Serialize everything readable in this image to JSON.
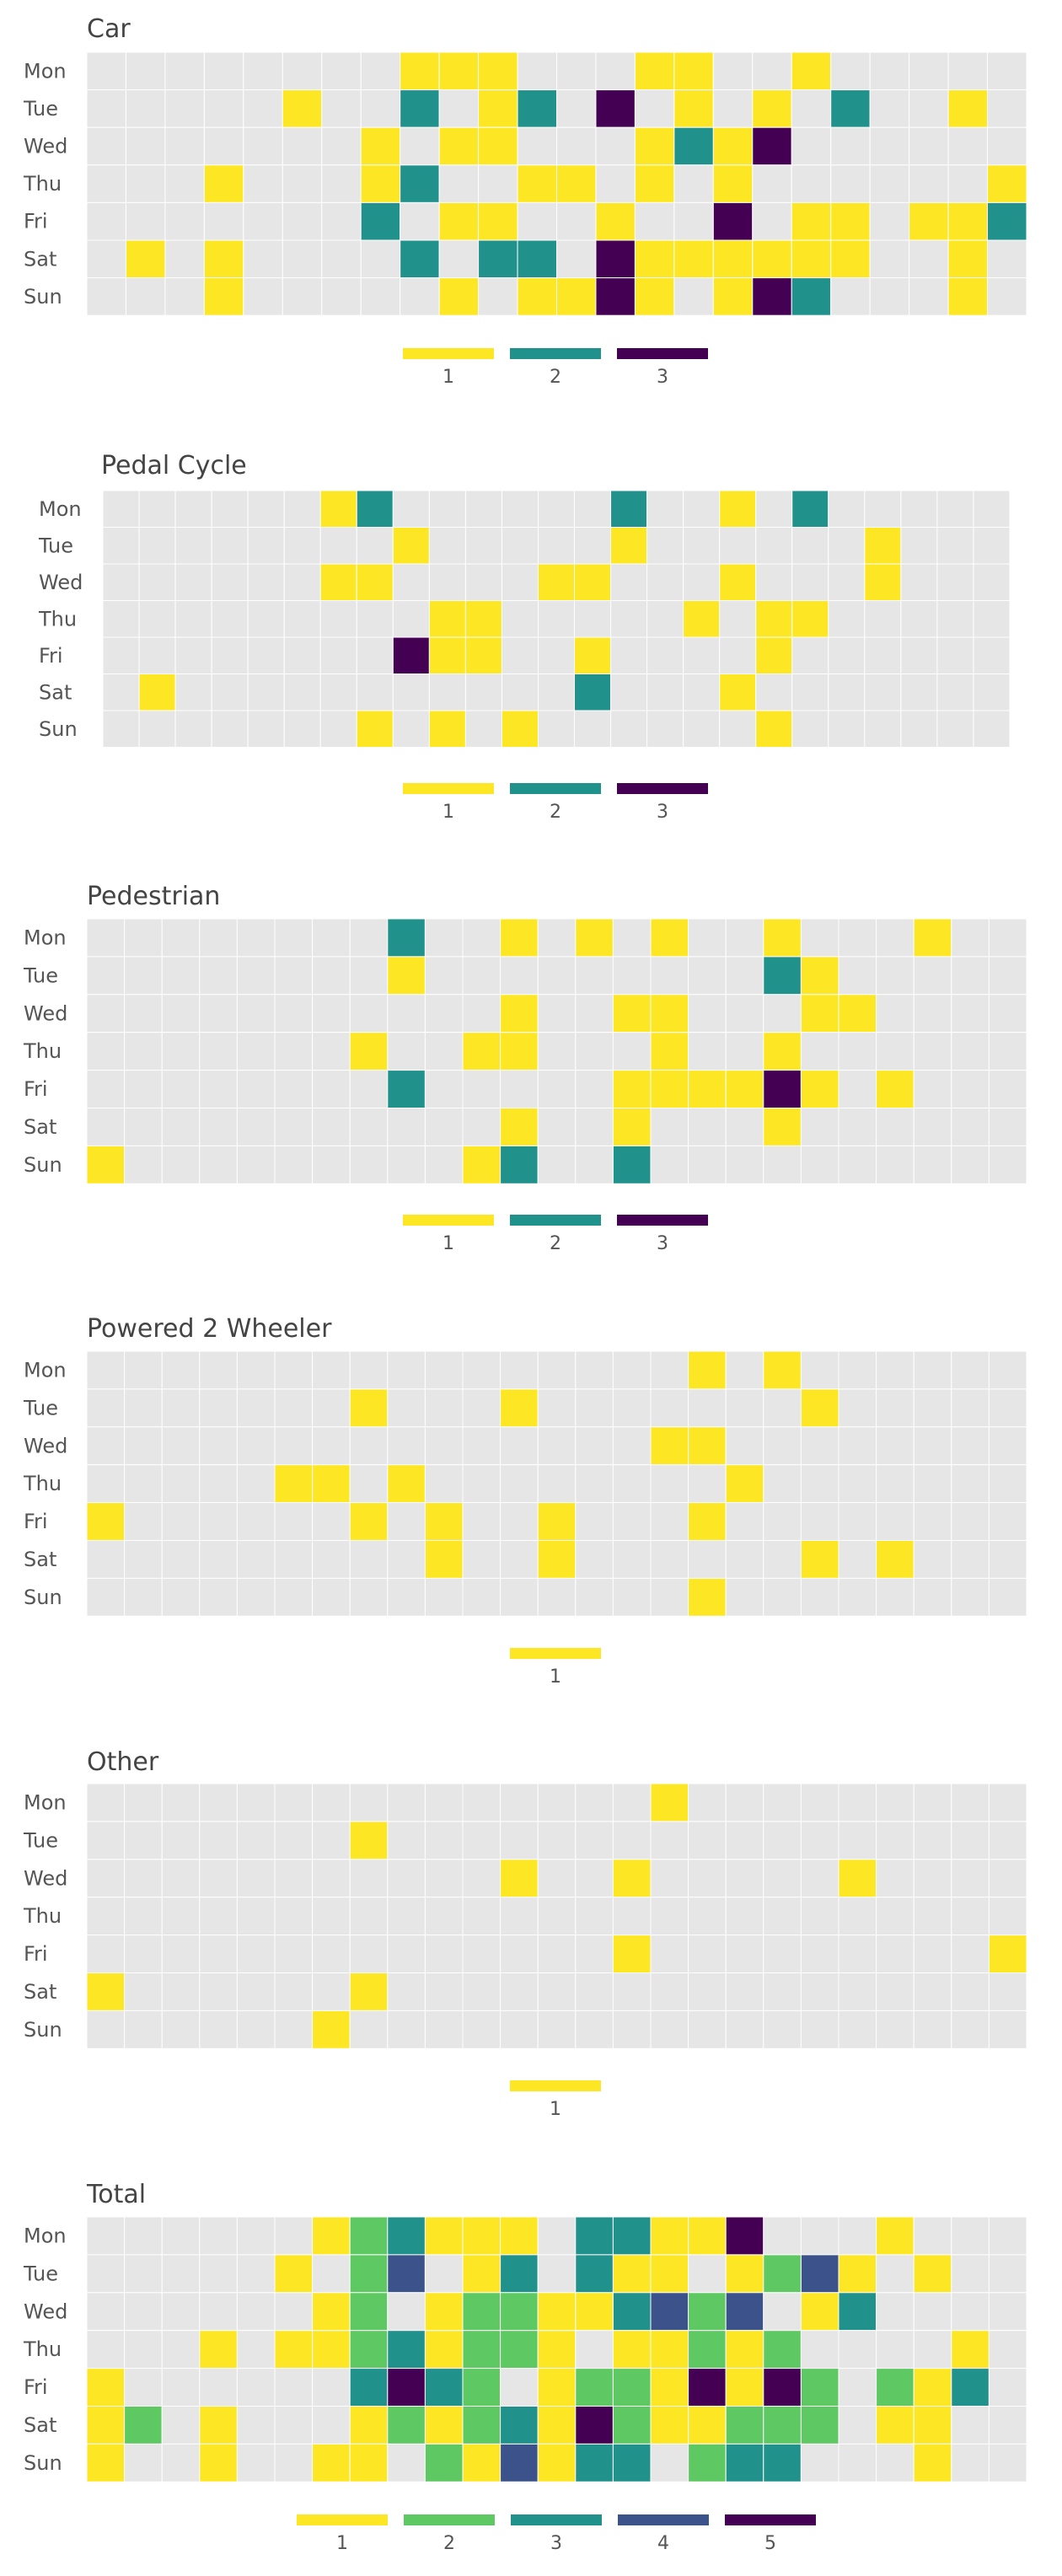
{
  "palette": {
    "background": "#e6e6e6",
    "1": "#fde725",
    "2": "#5ec962",
    "3": "#21918c",
    "4": "#3b528b",
    "5": "#440154"
  },
  "chart_data": [
    {
      "type": "heatmap",
      "title": "Car",
      "days": [
        "Mon",
        "Tue",
        "Wed",
        "Thu",
        "Fri",
        "Sat",
        "Sun"
      ],
      "hours": 24,
      "legend": [
        {
          "value": 1,
          "label": "1",
          "color": "#fde725"
        },
        {
          "value": 2,
          "label": "2",
          "color": "#21918c"
        },
        {
          "value": 3,
          "label": "3",
          "color": "#440154"
        }
      ],
      "grid": [
        [
          0,
          0,
          0,
          0,
          0,
          0,
          0,
          0,
          1,
          1,
          1,
          0,
          0,
          0,
          1,
          1,
          0,
          0,
          1,
          0,
          0,
          0,
          0,
          0
        ],
        [
          0,
          0,
          0,
          0,
          0,
          1,
          0,
          0,
          2,
          0,
          1,
          2,
          0,
          3,
          0,
          1,
          0,
          1,
          0,
          2,
          0,
          0,
          1,
          0
        ],
        [
          0,
          0,
          0,
          0,
          0,
          0,
          0,
          1,
          0,
          1,
          1,
          0,
          0,
          0,
          1,
          2,
          1,
          3,
          0,
          0,
          0,
          0,
          0,
          0
        ],
        [
          0,
          0,
          0,
          1,
          0,
          0,
          0,
          1,
          2,
          0,
          0,
          1,
          1,
          0,
          1,
          0,
          1,
          0,
          0,
          0,
          0,
          0,
          0,
          1
        ],
        [
          0,
          0,
          0,
          0,
          0,
          0,
          0,
          2,
          0,
          1,
          1,
          0,
          0,
          1,
          0,
          0,
          3,
          0,
          1,
          1,
          0,
          1,
          1,
          2
        ],
        [
          0,
          1,
          0,
          1,
          0,
          0,
          0,
          0,
          2,
          0,
          2,
          2,
          0,
          3,
          1,
          1,
          1,
          1,
          1,
          1,
          0,
          0,
          1,
          0
        ],
        [
          0,
          0,
          0,
          1,
          0,
          0,
          0,
          0,
          0,
          1,
          0,
          1,
          1,
          3,
          1,
          0,
          1,
          3,
          2,
          0,
          0,
          0,
          1,
          0
        ]
      ]
    },
    {
      "type": "heatmap",
      "title": "Pedal Cycle",
      "days": [
        "Mon",
        "Tue",
        "Wed",
        "Thu",
        "Fri",
        "Sat",
        "Sun"
      ],
      "hours": 25,
      "legend": [
        {
          "value": 1,
          "label": "1",
          "color": "#fde725"
        },
        {
          "value": 2,
          "label": "2",
          "color": "#21918c"
        },
        {
          "value": 3,
          "label": "3",
          "color": "#440154"
        }
      ],
      "grid": [
        [
          0,
          0,
          0,
          0,
          0,
          0,
          1,
          2,
          0,
          0,
          0,
          0,
          0,
          0,
          2,
          0,
          0,
          1,
          0,
          2,
          0,
          0,
          0,
          0,
          0
        ],
        [
          0,
          0,
          0,
          0,
          0,
          0,
          0,
          0,
          1,
          0,
          0,
          0,
          0,
          0,
          1,
          0,
          0,
          0,
          0,
          0,
          0,
          1,
          0,
          0,
          0
        ],
        [
          0,
          0,
          0,
          0,
          0,
          0,
          1,
          1,
          0,
          0,
          0,
          0,
          1,
          1,
          0,
          0,
          0,
          1,
          0,
          0,
          0,
          1,
          0,
          0,
          0
        ],
        [
          0,
          0,
          0,
          0,
          0,
          0,
          0,
          0,
          0,
          1,
          1,
          0,
          0,
          0,
          0,
          0,
          1,
          0,
          1,
          1,
          0,
          0,
          0,
          0,
          0
        ],
        [
          0,
          0,
          0,
          0,
          0,
          0,
          0,
          0,
          3,
          1,
          1,
          0,
          0,
          1,
          0,
          0,
          0,
          0,
          1,
          0,
          0,
          0,
          0,
          0,
          0
        ],
        [
          0,
          1,
          0,
          0,
          0,
          0,
          0,
          0,
          0,
          0,
          0,
          0,
          0,
          2,
          0,
          0,
          0,
          1,
          0,
          0,
          0,
          0,
          0,
          0,
          0
        ],
        [
          0,
          0,
          0,
          0,
          0,
          0,
          0,
          1,
          0,
          1,
          0,
          1,
          0,
          0,
          0,
          0,
          0,
          0,
          1,
          0,
          0,
          0,
          0,
          0,
          0
        ]
      ]
    },
    {
      "type": "heatmap",
      "title": "Pedestrian",
      "days": [
        "Mon",
        "Tue",
        "Wed",
        "Thu",
        "Fri",
        "Sat",
        "Sun"
      ],
      "hours": 25,
      "legend": [
        {
          "value": 1,
          "label": "1",
          "color": "#fde725"
        },
        {
          "value": 2,
          "label": "2",
          "color": "#21918c"
        },
        {
          "value": 3,
          "label": "3",
          "color": "#440154"
        }
      ],
      "grid": [
        [
          0,
          0,
          0,
          0,
          0,
          0,
          0,
          0,
          2,
          0,
          0,
          1,
          0,
          1,
          0,
          1,
          0,
          0,
          1,
          0,
          0,
          0,
          1,
          0,
          0
        ],
        [
          0,
          0,
          0,
          0,
          0,
          0,
          0,
          0,
          1,
          0,
          0,
          0,
          0,
          0,
          0,
          0,
          0,
          0,
          2,
          1,
          0,
          0,
          0,
          0,
          0
        ],
        [
          0,
          0,
          0,
          0,
          0,
          0,
          0,
          0,
          0,
          0,
          0,
          1,
          0,
          0,
          1,
          1,
          0,
          0,
          0,
          1,
          1,
          0,
          0,
          0,
          0
        ],
        [
          0,
          0,
          0,
          0,
          0,
          0,
          0,
          1,
          0,
          0,
          1,
          1,
          0,
          0,
          0,
          1,
          0,
          0,
          1,
          0,
          0,
          0,
          0,
          0,
          0
        ],
        [
          0,
          0,
          0,
          0,
          0,
          0,
          0,
          0,
          2,
          0,
          0,
          0,
          0,
          0,
          1,
          1,
          1,
          1,
          3,
          1,
          0,
          1,
          0,
          0,
          0
        ],
        [
          0,
          0,
          0,
          0,
          0,
          0,
          0,
          0,
          0,
          0,
          0,
          1,
          0,
          0,
          1,
          0,
          0,
          0,
          1,
          0,
          0,
          0,
          0,
          0,
          0
        ],
        [
          1,
          0,
          0,
          0,
          0,
          0,
          0,
          0,
          0,
          0,
          1,
          2,
          0,
          0,
          2,
          0,
          0,
          0,
          0,
          0,
          0,
          0,
          0,
          0,
          0
        ]
      ]
    },
    {
      "type": "heatmap",
      "title": "Powered 2 Wheeler",
      "days": [
        "Mon",
        "Tue",
        "Wed",
        "Thu",
        "Fri",
        "Sat",
        "Sun"
      ],
      "hours": 25,
      "legend": [
        {
          "value": 1,
          "label": "1",
          "color": "#fde725"
        }
      ],
      "grid": [
        [
          0,
          0,
          0,
          0,
          0,
          0,
          0,
          0,
          0,
          0,
          0,
          0,
          0,
          0,
          0,
          0,
          1,
          0,
          1,
          0,
          0,
          0,
          0,
          0,
          0
        ],
        [
          0,
          0,
          0,
          0,
          0,
          0,
          0,
          1,
          0,
          0,
          0,
          1,
          0,
          0,
          0,
          0,
          0,
          0,
          0,
          1,
          0,
          0,
          0,
          0,
          0
        ],
        [
          0,
          0,
          0,
          0,
          0,
          0,
          0,
          0,
          0,
          0,
          0,
          0,
          0,
          0,
          0,
          1,
          1,
          0,
          0,
          0,
          0,
          0,
          0,
          0,
          0
        ],
        [
          0,
          0,
          0,
          0,
          0,
          1,
          1,
          0,
          1,
          0,
          0,
          0,
          0,
          0,
          0,
          0,
          0,
          1,
          0,
          0,
          0,
          0,
          0,
          0,
          0
        ],
        [
          1,
          0,
          0,
          0,
          0,
          0,
          0,
          1,
          0,
          1,
          0,
          0,
          1,
          0,
          0,
          0,
          1,
          0,
          0,
          0,
          0,
          0,
          0,
          0,
          0
        ],
        [
          0,
          0,
          0,
          0,
          0,
          0,
          0,
          0,
          0,
          1,
          0,
          0,
          1,
          0,
          0,
          0,
          0,
          0,
          0,
          1,
          0,
          1,
          0,
          0,
          0
        ],
        [
          0,
          0,
          0,
          0,
          0,
          0,
          0,
          0,
          0,
          0,
          0,
          0,
          0,
          0,
          0,
          0,
          1,
          0,
          0,
          0,
          0,
          0,
          0,
          0,
          0
        ]
      ]
    },
    {
      "type": "heatmap",
      "title": "Other",
      "days": [
        "Mon",
        "Tue",
        "Wed",
        "Thu",
        "Fri",
        "Sat",
        "Sun"
      ],
      "hours": 25,
      "legend": [
        {
          "value": 1,
          "label": "1",
          "color": "#fde725"
        }
      ],
      "grid": [
        [
          0,
          0,
          0,
          0,
          0,
          0,
          0,
          0,
          0,
          0,
          0,
          0,
          0,
          0,
          0,
          1,
          0,
          0,
          0,
          0,
          0,
          0,
          0,
          0,
          0
        ],
        [
          0,
          0,
          0,
          0,
          0,
          0,
          0,
          1,
          0,
          0,
          0,
          0,
          0,
          0,
          0,
          0,
          0,
          0,
          0,
          0,
          0,
          0,
          0,
          0,
          0
        ],
        [
          0,
          0,
          0,
          0,
          0,
          0,
          0,
          0,
          0,
          0,
          0,
          1,
          0,
          0,
          1,
          0,
          0,
          0,
          0,
          0,
          1,
          0,
          0,
          0,
          0
        ],
        [
          0,
          0,
          0,
          0,
          0,
          0,
          0,
          0,
          0,
          0,
          0,
          0,
          0,
          0,
          0,
          0,
          0,
          0,
          0,
          0,
          0,
          0,
          0,
          0,
          0
        ],
        [
          0,
          0,
          0,
          0,
          0,
          0,
          0,
          0,
          0,
          0,
          0,
          0,
          0,
          0,
          1,
          0,
          0,
          0,
          0,
          0,
          0,
          0,
          0,
          0,
          1
        ],
        [
          1,
          0,
          0,
          0,
          0,
          0,
          0,
          1,
          0,
          0,
          0,
          0,
          0,
          0,
          0,
          0,
          0,
          0,
          0,
          0,
          0,
          0,
          0,
          0,
          0
        ],
        [
          0,
          0,
          0,
          0,
          0,
          0,
          1,
          0,
          0,
          0,
          0,
          0,
          0,
          0,
          0,
          0,
          0,
          0,
          0,
          0,
          0,
          0,
          0,
          0,
          0
        ]
      ]
    },
    {
      "type": "heatmap",
      "title": "Total",
      "days": [
        "Mon",
        "Tue",
        "Wed",
        "Thu",
        "Fri",
        "Sat",
        "Sun"
      ],
      "hours": 25,
      "legend": [
        {
          "value": 1,
          "label": "1",
          "color": "#fde725"
        },
        {
          "value": 2,
          "label": "2",
          "color": "#5ec962"
        },
        {
          "value": 3,
          "label": "3",
          "color": "#21918c"
        },
        {
          "value": 4,
          "label": "4",
          "color": "#3b528b"
        },
        {
          "value": 5,
          "label": "5",
          "color": "#440154"
        }
      ],
      "grid": [
        [
          0,
          0,
          0,
          0,
          0,
          0,
          1,
          2,
          3,
          1,
          1,
          1,
          0,
          3,
          3,
          1,
          1,
          5,
          0,
          0,
          0,
          1,
          0,
          0,
          0
        ],
        [
          0,
          0,
          0,
          0,
          0,
          1,
          0,
          2,
          4,
          0,
          1,
          3,
          0,
          3,
          1,
          1,
          0,
          1,
          2,
          4,
          1,
          0,
          1,
          0,
          0
        ],
        [
          0,
          0,
          0,
          0,
          0,
          0,
          1,
          2,
          0,
          1,
          2,
          2,
          1,
          1,
          3,
          4,
          2,
          4,
          0,
          1,
          3,
          0,
          0,
          0,
          0
        ],
        [
          0,
          0,
          0,
          1,
          0,
          1,
          1,
          2,
          3,
          1,
          2,
          2,
          1,
          0,
          1,
          1,
          2,
          1,
          2,
          0,
          0,
          0,
          0,
          1,
          0
        ],
        [
          1,
          0,
          0,
          0,
          0,
          0,
          0,
          3,
          5,
          3,
          2,
          0,
          1,
          2,
          2,
          1,
          5,
          1,
          5,
          2,
          0,
          2,
          1,
          3,
          0
        ],
        [
          1,
          2,
          0,
          1,
          0,
          0,
          0,
          1,
          2,
          1,
          2,
          3,
          1,
          5,
          2,
          1,
          1,
          2,
          2,
          2,
          0,
          1,
          1,
          0,
          0
        ],
        [
          1,
          0,
          0,
          1,
          0,
          0,
          1,
          1,
          0,
          2,
          1,
          4,
          1,
          3,
          3,
          0,
          2,
          3,
          3,
          0,
          0,
          0,
          1,
          0,
          0
        ]
      ]
    }
  ]
}
